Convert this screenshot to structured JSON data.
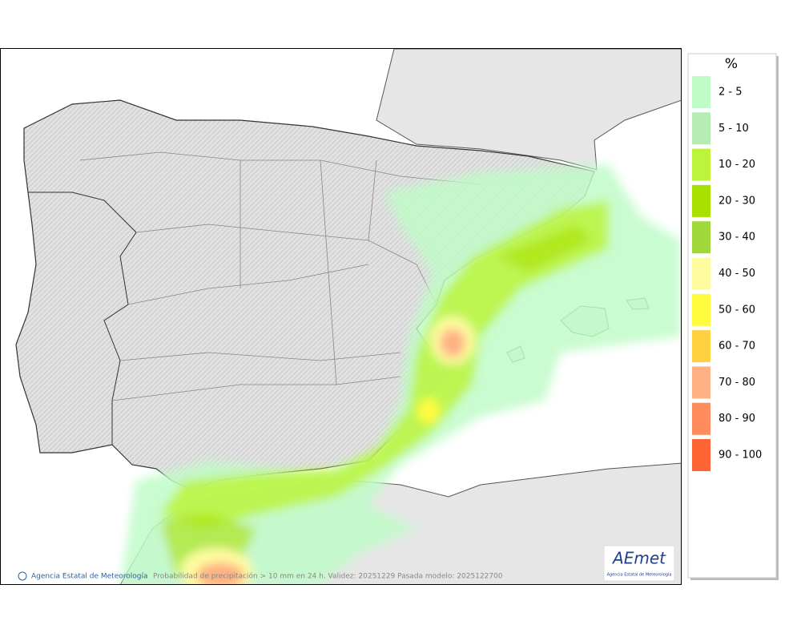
{
  "legend": {
    "title": "%",
    "items": [
      {
        "label": "2 - 5",
        "color": "#c0fcc8"
      },
      {
        "label": "5 - 10",
        "color": "#b4ecb4"
      },
      {
        "label": "10 - 20",
        "color": "#bcf43c"
      },
      {
        "label": "20 - 30",
        "color": "#a8e000"
      },
      {
        "label": "30 - 40",
        "color": "#a0d83c"
      },
      {
        "label": "40 - 50",
        "color": "#fffca0"
      },
      {
        "label": "50 - 60",
        "color": "#fffc40"
      },
      {
        "label": "60 - 70",
        "color": "#ffd040"
      },
      {
        "label": "70 - 80",
        "color": "#ffb084"
      },
      {
        "label": "80 - 90",
        "color": "#ff8c5c"
      },
      {
        "label": "90 - 100",
        "color": "#ff6434"
      }
    ]
  },
  "footer": {
    "credit": "Agencia Estatal de Meteorología",
    "caption": "Probabilidad de precipitación > 10 mm en 24 h. Validez: 20251229 Pasada modelo: 2025122700"
  },
  "logo": {
    "name": "AEmet",
    "subtitle": "Agencia Estatal de Meteorología"
  }
}
